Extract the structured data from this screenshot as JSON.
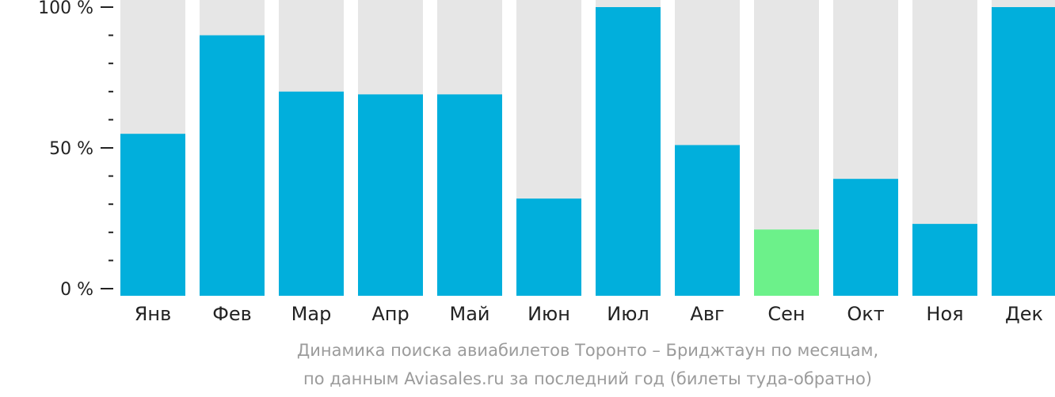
{
  "chart_data": {
    "type": "bar",
    "categories": [
      "Янв",
      "Фев",
      "Мар",
      "Апр",
      "Май",
      "Июн",
      "Июл",
      "Авг",
      "Сен",
      "Окт",
      "Ноя",
      "Дек"
    ],
    "values": [
      55,
      90,
      70,
      69,
      69,
      32,
      100,
      51,
      21,
      39,
      23,
      100
    ],
    "ylim": [
      0,
      100
    ],
    "y_ticks": [
      "0 %",
      "50 %",
      "100 %"
    ],
    "highlight_index": 8,
    "colors": {
      "bar": "#01afdc",
      "highlight": "#6cf18a",
      "background_bar": "#e6e6e6",
      "axis": "#222222",
      "caption": "#9b9b9b"
    },
    "caption": [
      "Динамика поиска авиабилетов Торонто – Бриджтаун по месяцам,",
      "по данным Aviasales.ru за последний год (билеты туда-обратно)"
    ]
  }
}
